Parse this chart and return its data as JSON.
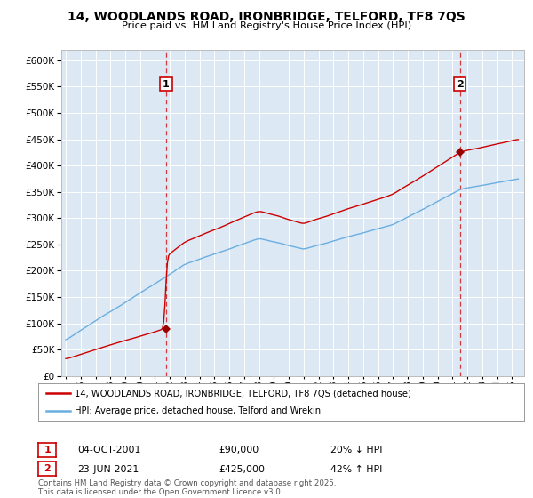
{
  "title": "14, WOODLANDS ROAD, IRONBRIDGE, TELFORD, TF8 7QS",
  "subtitle": "Price paid vs. HM Land Registry's House Price Index (HPI)",
  "background_color": "#dce9f5",
  "plot_bg_color": "#dce9f5",
  "sale1_year": 2001.75,
  "sale1_price": 90000,
  "sale1_label": "1",
  "sale1_date_str": "04-OCT-2001",
  "sale1_price_str": "£90,000",
  "sale1_hpi_str": "20% ↓ HPI",
  "sale2_year": 2021.5,
  "sale2_price": 425000,
  "sale2_label": "2",
  "sale2_date_str": "23-JUN-2021",
  "sale2_price_str": "£425,000",
  "sale2_hpi_str": "42% ↑ HPI",
  "legend_line1": "14, WOODLANDS ROAD, IRONBRIDGE, TELFORD, TF8 7QS (detached house)",
  "legend_line2": "HPI: Average price, detached house, Telford and Wrekin",
  "footer": "Contains HM Land Registry data © Crown copyright and database right 2025.\nThis data is licensed under the Open Government Licence v3.0.",
  "ylim": [
    0,
    620000
  ],
  "ylabel_ticks": [
    0,
    50000,
    100000,
    150000,
    200000,
    250000,
    300000,
    350000,
    400000,
    450000,
    500000,
    550000,
    600000
  ],
  "red_line_color": "#cc0000",
  "blue_line_color": "#6aaee0",
  "vline_color": "#cc0000",
  "marker_color": "#990000"
}
